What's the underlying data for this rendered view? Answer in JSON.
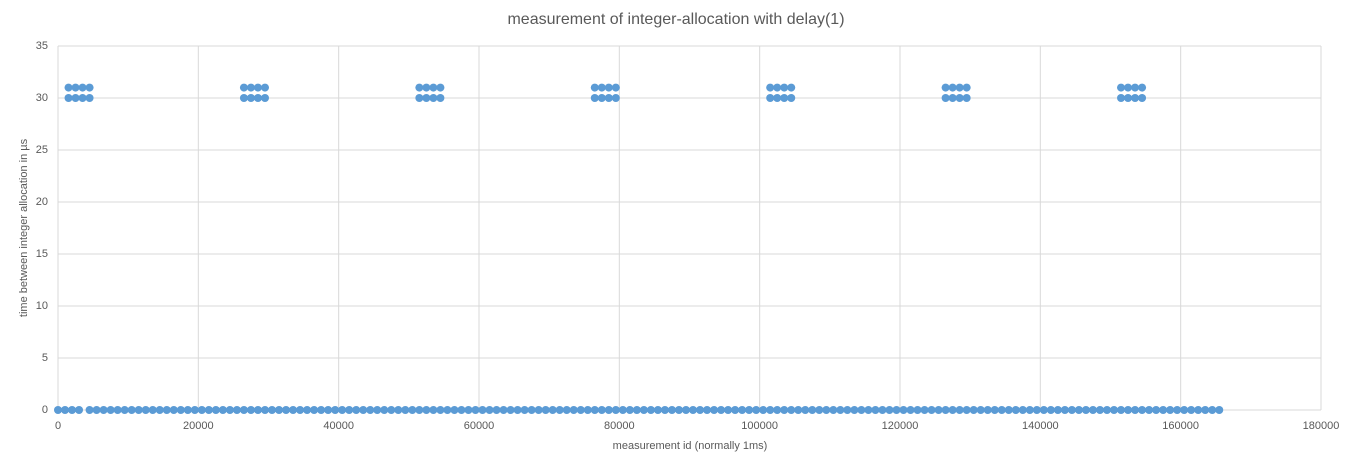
{
  "chart_data": {
    "type": "scatter",
    "title": "measurement of integer-allocation with delay(1)",
    "x_label": "measurement id (normally 1ms)",
    "y_label": "time between integer allocation in µs",
    "color": "#5b9bd5",
    "grid": true,
    "xlim": [
      0,
      180000
    ],
    "xticks": [
      0,
      20000,
      40000,
      60000,
      80000,
      100000,
      120000,
      140000,
      160000,
      180000
    ],
    "ylim": [
      0,
      35
    ],
    "yticks": [
      0,
      5,
      10,
      15,
      20,
      25,
      30,
      35
    ],
    "x": [
      0,
      1000,
      2000,
      3000,
      4500,
      5500,
      6500,
      7500,
      8500,
      9500,
      10500,
      11500,
      12500,
      13500,
      14500,
      15500,
      16500,
      17500,
      18500,
      19500,
      20500,
      21500,
      22500,
      23500,
      24500,
      25500,
      26500,
      27500,
      28500,
      29500,
      30500,
      31500,
      32500,
      33500,
      34500,
      35500,
      36500,
      37500,
      38500,
      39500,
      40500,
      41500,
      42500,
      43500,
      44500,
      45500,
      46500,
      47500,
      48500,
      49500,
      50500,
      51500,
      52500,
      53500,
      54500,
      55500,
      56500,
      57500,
      58500,
      59500,
      60500,
      61500,
      62500,
      63500,
      64500,
      65500,
      66500,
      67500,
      68500,
      69500,
      70500,
      71500,
      72500,
      73500,
      74500,
      75500,
      76500,
      77500,
      78500,
      79500,
      80500,
      81500,
      82500,
      83500,
      84500,
      85500,
      86500,
      87500,
      88500,
      89500,
      90500,
      91500,
      92500,
      93500,
      94500,
      95500,
      96500,
      97500,
      98500,
      99500,
      100500,
      101500,
      102500,
      103500,
      104500,
      105500,
      106500,
      107500,
      108500,
      109500,
      110500,
      111500,
      112500,
      113500,
      114500,
      115500,
      116500,
      117500,
      118500,
      119500,
      120500,
      121500,
      122500,
      123500,
      124500,
      125500,
      126500,
      127500,
      128500,
      129500,
      130500,
      131500,
      132500,
      133500,
      134500,
      135500,
      136500,
      137500,
      138500,
      139500,
      140500,
      141500,
      142500,
      143500,
      144500,
      145500,
      146500,
      147500,
      148500,
      149500,
      150500,
      151500,
      152500,
      153500,
      154500,
      155500,
      156500,
      157500,
      158500,
      159500,
      160500,
      161500,
      162500,
      163500,
      164500,
      165500,
      1500,
      2500,
      3500,
      4500,
      26500,
      27500,
      28500,
      29500,
      51500,
      52500,
      53500,
      54500,
      76500,
      77500,
      78500,
      79500,
      101500,
      102500,
      103500,
      104500,
      126500,
      127500,
      128500,
      129500,
      151500,
      152500,
      153500,
      154500,
      1500,
      2500,
      3500,
      4500,
      26500,
      27500,
      28500,
      29500,
      51500,
      52500,
      53500,
      54500,
      76500,
      77500,
      78500,
      79500,
      101500,
      102500,
      103500,
      104500,
      126500,
      127500,
      128500,
      129500,
      151500,
      152500,
      153500,
      154500
    ],
    "values": [
      0,
      0,
      0,
      0,
      0,
      0,
      0,
      0,
      0,
      0,
      0,
      0,
      0,
      0,
      0,
      0,
      0,
      0,
      0,
      0,
      0,
      0,
      0,
      0,
      0,
      0,
      0,
      0,
      0,
      0,
      0,
      0,
      0,
      0,
      0,
      0,
      0,
      0,
      0,
      0,
      0,
      0,
      0,
      0,
      0,
      0,
      0,
      0,
      0,
      0,
      0,
      0,
      0,
      0,
      0,
      0,
      0,
      0,
      0,
      0,
      0,
      0,
      0,
      0,
      0,
      0,
      0,
      0,
      0,
      0,
      0,
      0,
      0,
      0,
      0,
      0,
      0,
      0,
      0,
      0,
      0,
      0,
      0,
      0,
      0,
      0,
      0,
      0,
      0,
      0,
      0,
      0,
      0,
      0,
      0,
      0,
      0,
      0,
      0,
      0,
      0,
      0,
      0,
      0,
      0,
      0,
      0,
      0,
      0,
      0,
      0,
      0,
      0,
      0,
      0,
      0,
      0,
      0,
      0,
      0,
      0,
      0,
      0,
      0,
      0,
      0,
      0,
      0,
      0,
      0,
      0,
      0,
      0,
      0,
      0,
      0,
      0,
      0,
      0,
      0,
      0,
      0,
      0,
      0,
      0,
      0,
      0,
      0,
      0,
      0,
      0,
      0,
      0,
      0,
      0,
      0,
      0,
      0,
      0,
      0,
      0,
      0,
      0,
      0,
      0,
      0,
      30,
      30,
      30,
      30,
      30,
      30,
      30,
      30,
      30,
      30,
      30,
      30,
      30,
      30,
      30,
      30,
      30,
      30,
      30,
      30,
      30,
      30,
      30,
      30,
      30,
      30,
      30,
      30,
      31,
      31,
      31,
      31,
      31,
      31,
      31,
      31,
      31,
      31,
      31,
      31,
      31,
      31,
      31,
      31,
      31,
      31,
      31,
      31,
      31,
      31,
      31,
      31,
      31,
      31,
      31,
      31
    ]
  }
}
